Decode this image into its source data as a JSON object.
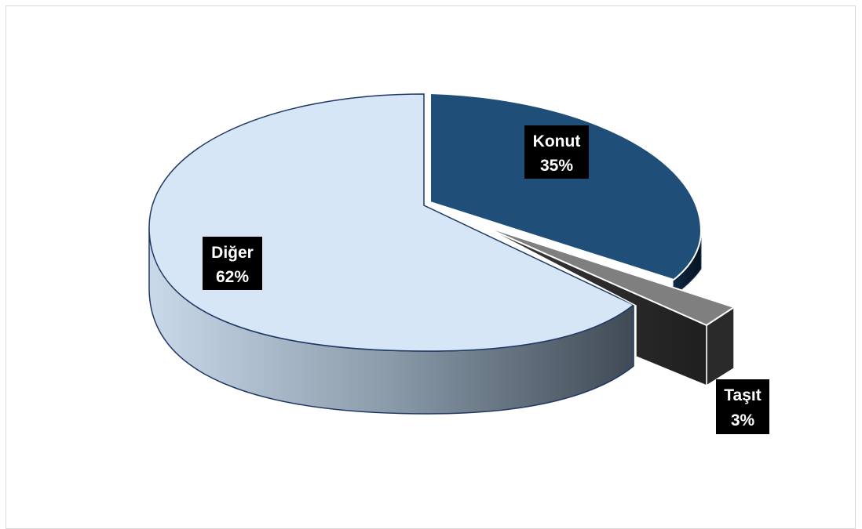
{
  "chart_data": {
    "type": "pie",
    "title": "",
    "categories": [
      "Konut",
      "Taşıt",
      "Diğer"
    ],
    "values": [
      35,
      3,
      62
    ],
    "colors": {
      "Konut": "#1f4e79",
      "Taşıt": "#7f7f7f",
      "Diğer": "#d6e6f7"
    },
    "labels": [
      {
        "name": "Konut",
        "percent": "35%"
      },
      {
        "name": "Taşıt",
        "percent": "3%"
      },
      {
        "name": "Diğer",
        "percent": "62%"
      }
    ],
    "style": "3d-exploded",
    "legend": "none"
  }
}
